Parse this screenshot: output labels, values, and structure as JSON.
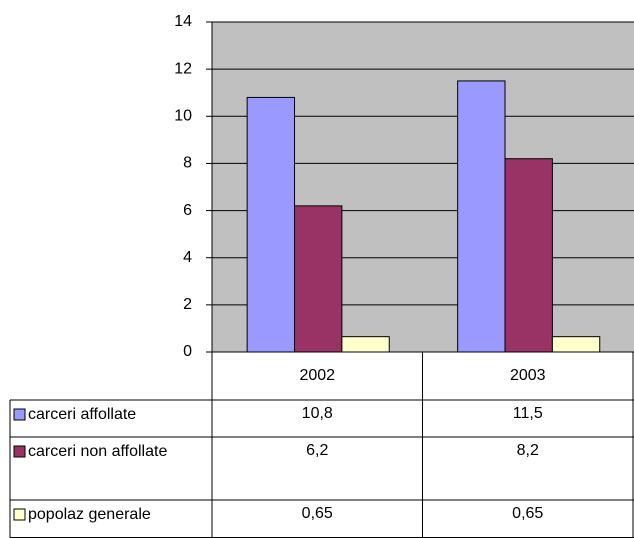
{
  "chart_data": {
    "type": "bar",
    "categories": [
      "2002",
      "2003"
    ],
    "series": [
      {
        "name": "carceri affollate",
        "color": "#9999ff",
        "values": [
          10.8,
          11.5
        ],
        "value_labels": [
          "10,8",
          "11,5"
        ]
      },
      {
        "name": "carceri non affollate",
        "color": "#993366",
        "values": [
          6.2,
          8.2
        ],
        "value_labels": [
          "6,2",
          "8,2"
        ]
      },
      {
        "name": "popolaz generale",
        "color": "#ffffcc",
        "values": [
          0.65,
          0.65
        ],
        "value_labels": [
          "0,65",
          "0,65"
        ]
      }
    ],
    "ylim": [
      0,
      14
    ],
    "yticks": [
      0,
      2,
      4,
      6,
      8,
      10,
      12,
      14
    ],
    "grid": true,
    "data_table": true
  }
}
